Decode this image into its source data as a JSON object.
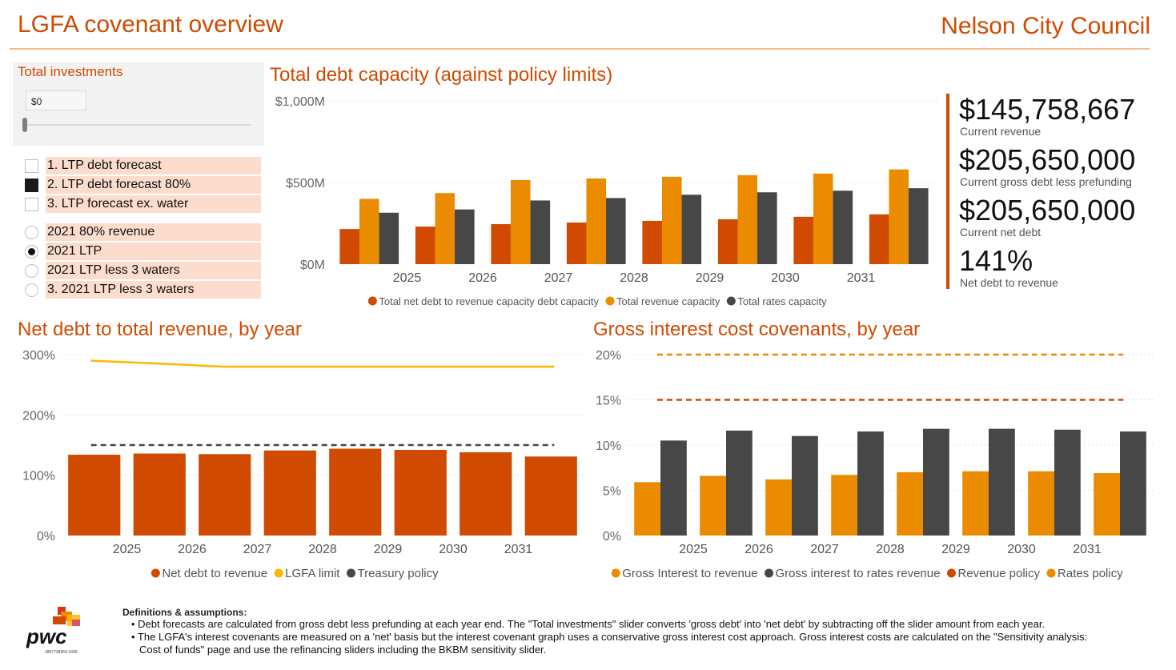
{
  "header": {
    "title": "LGFA covenant overview",
    "client": "Nelson City Council"
  },
  "slicer": {
    "title": "Total investments",
    "value": "$0",
    "position_fraction": 0
  },
  "scenarios": [
    {
      "label": "1. LTP debt forecast",
      "checked": false
    },
    {
      "label": "2. LTP debt forecast 80%",
      "checked": true
    },
    {
      "label": "3. LTP forecast ex. water",
      "checked": false
    }
  ],
  "revenue_options": [
    {
      "label": "2021 80% revenue",
      "selected": false
    },
    {
      "label": "2021 LTP",
      "selected": true
    },
    {
      "label": "2021 LTP less 3 waters",
      "selected": false
    },
    {
      "label": "3. 2021 LTP less 3 waters",
      "selected": false
    }
  ],
  "kpis": [
    {
      "value": "$145,758,667",
      "label": "Current revenue"
    },
    {
      "value": "$205,650,000",
      "label": "Current gross debt less prefunding"
    },
    {
      "value": "$205,650,000",
      "label": "Current net debt"
    },
    {
      "value": "141%",
      "label": "Net debt to revenue"
    }
  ],
  "colors": {
    "accent": "#d04a02",
    "amber": "#eb8c00",
    "dark": "#474747",
    "yellow": "#ffb600",
    "red": "#e0301e"
  },
  "chart_data": [
    {
      "type": "bar",
      "title": "Total debt capacity (against policy limits)",
      "categories": [
        "",
        "2025",
        "2026",
        "2027",
        "2028",
        "2029",
        "2030",
        "2031"
      ],
      "x_tick_labels": [
        "2025",
        "2026",
        "2027",
        "2028",
        "2029",
        "2030",
        "2031"
      ],
      "ylim": [
        0,
        1000
      ],
      "y_ticks": [
        0,
        500,
        1000
      ],
      "y_tick_labels": [
        "$0M",
        "$500M",
        "$1,000M"
      ],
      "grid": true,
      "legend_position": "bottom",
      "series": [
        {
          "name": "Total net debt to revenue capacity debt capacity",
          "color": "#d04a02",
          "values": [
            215,
            230,
            245,
            255,
            265,
            275,
            290,
            305
          ]
        },
        {
          "name": "Total revenue capacity",
          "color": "#eb8c00",
          "values": [
            400,
            435,
            515,
            525,
            535,
            545,
            555,
            580
          ]
        },
        {
          "name": "Total rates capacity",
          "color": "#474747",
          "values": [
            315,
            335,
            390,
            405,
            425,
            440,
            450,
            465
          ]
        }
      ]
    },
    {
      "type": "bar",
      "title": "Net debt to total revenue, by year",
      "categories": [
        "",
        "2025",
        "2026",
        "2027",
        "2028",
        "2029",
        "2030",
        "2031"
      ],
      "x_tick_labels": [
        "2025",
        "2026",
        "2027",
        "2028",
        "2029",
        "2030",
        "2031"
      ],
      "ylim": [
        0,
        300
      ],
      "y_ticks": [
        0,
        100,
        200,
        300
      ],
      "y_tick_labels": [
        "0%",
        "100%",
        "200%",
        "300%"
      ],
      "grid": true,
      "legend_position": "bottom",
      "series": [
        {
          "name": "Net debt to revenue",
          "color": "#d04a02",
          "values": [
            134,
            136,
            135,
            141,
            144,
            142,
            138,
            131
          ]
        }
      ],
      "lines": [
        {
          "name": "LGFA limit",
          "color": "#ffb600",
          "dashed": false,
          "values": [
            290,
            285,
            280,
            280,
            280,
            280,
            280,
            280
          ]
        },
        {
          "name": "Treasury policy",
          "color": "#474747",
          "dashed": true,
          "values": [
            150,
            150,
            150,
            150,
            150,
            150,
            150,
            150
          ]
        }
      ]
    },
    {
      "type": "bar",
      "title": "Gross interest cost covenants, by year",
      "categories": [
        "",
        "2025",
        "2026",
        "2027",
        "2028",
        "2029",
        "2030",
        "2031"
      ],
      "x_tick_labels": [
        "2025",
        "2026",
        "2027",
        "2028",
        "2029",
        "2030",
        "2031"
      ],
      "ylim": [
        0,
        20
      ],
      "y_ticks": [
        0,
        5,
        10,
        15,
        20
      ],
      "y_tick_labels": [
        "0%",
        "5%",
        "10%",
        "15%",
        "20%"
      ],
      "grid": true,
      "legend_position": "bottom",
      "series": [
        {
          "name": "Gross Interest to revenue",
          "color": "#eb8c00",
          "values": [
            5.9,
            6.6,
            6.2,
            6.7,
            7.0,
            7.1,
            7.1,
            6.9
          ]
        },
        {
          "name": "Gross interest to rates revenue",
          "color": "#474747",
          "values": [
            10.5,
            11.6,
            11.0,
            11.5,
            11.8,
            11.8,
            11.7,
            11.5
          ]
        }
      ],
      "lines": [
        {
          "name": "Revenue policy",
          "color": "#d04a02",
          "dashed": true,
          "values": [
            15,
            15,
            15,
            15,
            15,
            15,
            15,
            15
          ]
        },
        {
          "name": "Rates policy",
          "color": "#eb8c00",
          "dashed": true,
          "values": [
            20,
            20,
            20,
            20,
            20,
            20,
            20,
            20
          ]
        }
      ]
    }
  ],
  "footer": {
    "title": "Definitions & assumptions:",
    "lines": [
      "• Debt forecasts are calculated from gross debt less prefunding at each year end. The \"Total investments\" slider converts 'gross debt' into 'net debt' by subtracting off the slider amount from each year.",
      "• The LGFA's interest covenants are measured on a 'net' basis but the interest covenant graph uses a conservative gross interest cost approach. Gross interest costs are calculated on the \"Sensitivity analysis:",
      "Cost of funds\" page and use the refinancing sliders including the BKBM sensitivity slider."
    ]
  },
  "logo": {
    "text": "pwc",
    "code": "1857728953-1036"
  }
}
